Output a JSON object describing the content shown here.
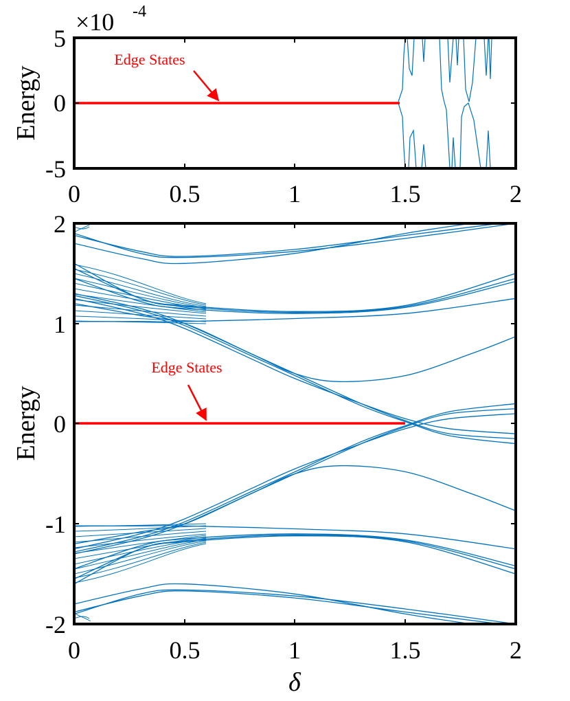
{
  "colors": {
    "band": "#0072BD",
    "edge": "#FF0000",
    "axis": "#000000"
  },
  "chart_data": [
    {
      "type": "line",
      "panel": "top",
      "xlabel": "",
      "ylabel": "Energy",
      "xlim": [
        0,
        2
      ],
      "ylim": [
        -5,
        5
      ],
      "y_scale_label": "×10",
      "y_scale_exponent": "-4",
      "x_ticks": [
        {
          "value": 0,
          "label": "0"
        },
        {
          "value": 0.5,
          "label": "0.5"
        },
        {
          "value": 1,
          "label": "1"
        },
        {
          "value": 1.5,
          "label": "1.5"
        },
        {
          "value": 2,
          "label": "2"
        }
      ],
      "y_ticks": [
        {
          "value": 5,
          "label": "5"
        },
        {
          "value": 0,
          "label": "0"
        },
        {
          "value": -5,
          "label": "-5"
        }
      ],
      "annotation": {
        "text": "Edge States",
        "text_at": [
          0.4,
          3.3
        ],
        "arrow_to": [
          0.66,
          0.1
        ]
      },
      "edge_series": {
        "name": "Edge States",
        "x": [
          0,
          1.47
        ],
        "y": [
          0,
          0
        ]
      }
    },
    {
      "type": "line",
      "panel": "bottom",
      "xlabel": "δ",
      "ylabel": "Energy",
      "xlim": [
        0,
        2
      ],
      "ylim": [
        -2,
        2
      ],
      "x_ticks": [
        {
          "value": 0,
          "label": "0"
        },
        {
          "value": 0.5,
          "label": "0.5"
        },
        {
          "value": 1,
          "label": "1"
        },
        {
          "value": 1.5,
          "label": "1.5"
        },
        {
          "value": 2,
          "label": "2"
        }
      ],
      "y_ticks": [
        {
          "value": 2,
          "label": "2"
        },
        {
          "value": 1,
          "label": "1"
        },
        {
          "value": 0,
          "label": "0"
        },
        {
          "value": -1,
          "label": "-1"
        },
        {
          "value": -2,
          "label": "-2"
        }
      ],
      "annotation": {
        "text": "Edge States",
        "text_at": [
          0.5,
          0.45
        ],
        "arrow_to": [
          0.61,
          0.01
        ]
      },
      "edge_series": {
        "name": "Edge States",
        "x": [
          0,
          1.5
        ],
        "y": [
          0,
          0
        ]
      },
      "band_series": [
        {
          "x": [
            0,
            0.3,
            0.5,
            1.0,
            1.5,
            2.0
          ],
          "y": [
            1.9,
            1.7,
            1.66,
            1.72,
            1.85,
            2.0
          ]
        },
        {
          "x": [
            0,
            0.3,
            0.5,
            1.0,
            1.5,
            2.0
          ],
          "y": [
            1.88,
            1.72,
            1.67,
            1.74,
            1.88,
            2.02
          ]
        },
        {
          "x": [
            0,
            0.3,
            0.5,
            1.0,
            1.5,
            1.8
          ],
          "y": [
            1.8,
            1.65,
            1.6,
            1.7,
            1.9,
            2.0
          ]
        },
        {
          "x": [
            0,
            0.3,
            0.5,
            1.0,
            1.5,
            2.0
          ],
          "y": [
            1.6,
            1.25,
            1.18,
            1.12,
            1.18,
            1.5
          ]
        },
        {
          "x": [
            0,
            0.3,
            0.5,
            1.0,
            1.5,
            2.0
          ],
          "y": [
            1.55,
            1.25,
            1.17,
            1.11,
            1.17,
            1.45
          ]
        },
        {
          "x": [
            0,
            0.3,
            0.5,
            1.0,
            1.5,
            2.0
          ],
          "y": [
            1.45,
            1.22,
            1.15,
            1.1,
            1.16,
            1.42
          ]
        },
        {
          "x": [
            0,
            0.3,
            0.5,
            1.0,
            1.5,
            2.0
          ],
          "y": [
            1.02,
            1.02,
            1.02,
            1.05,
            1.1,
            1.25
          ]
        },
        {
          "x": [
            0,
            0.3,
            0.5,
            0.8,
            1.0,
            1.3,
            1.5,
            1.7,
            2.0
          ],
          "y": [
            1.3,
            1.15,
            1.0,
            0.7,
            0.5,
            0.2,
            0.03,
            -0.1,
            -0.15
          ]
        },
        {
          "x": [
            0,
            0.3,
            0.5,
            0.8,
            1.0,
            1.3,
            1.5,
            1.7,
            2.0
          ],
          "y": [
            1.28,
            1.13,
            0.98,
            0.68,
            0.48,
            0.18,
            0.02,
            -0.12,
            -0.2
          ]
        },
        {
          "x": [
            0,
            0.3,
            0.5,
            0.8,
            1.0,
            1.3,
            1.5,
            1.7,
            2.0
          ],
          "y": [
            1.25,
            1.1,
            0.95,
            0.65,
            0.45,
            0.2,
            0.05,
            -0.05,
            -0.1
          ]
        },
        {
          "x": [
            0,
            0.3,
            0.5,
            0.8,
            1.0,
            1.2,
            1.5,
            1.8,
            2.0
          ],
          "y": [
            1.2,
            1.08,
            1.0,
            0.7,
            0.5,
            0.42,
            0.48,
            0.7,
            0.87
          ]
        },
        {
          "x": [
            0,
            0.3,
            0.5,
            0.8,
            1.0,
            1.3,
            1.5,
            1.7,
            2.0
          ],
          "y": [
            -1.3,
            -1.15,
            -1.0,
            -0.7,
            -0.5,
            -0.2,
            -0.03,
            0.1,
            0.15
          ]
        },
        {
          "x": [
            0,
            0.3,
            0.5,
            0.8,
            1.0,
            1.3,
            1.5,
            1.7,
            2.0
          ],
          "y": [
            -1.28,
            -1.13,
            -0.98,
            -0.68,
            -0.48,
            -0.18,
            -0.02,
            0.12,
            0.2
          ]
        },
        {
          "x": [
            0,
            0.3,
            0.5,
            0.8,
            1.0,
            1.3,
            1.5,
            1.7,
            2.0
          ],
          "y": [
            -1.25,
            -1.1,
            -0.95,
            -0.65,
            -0.45,
            -0.2,
            -0.05,
            0.05,
            0.1
          ]
        },
        {
          "x": [
            0,
            0.3,
            0.5,
            0.8,
            1.0,
            1.2,
            1.5,
            1.8,
            2.0
          ],
          "y": [
            -1.2,
            -1.08,
            -1.0,
            -0.7,
            -0.5,
            -0.42,
            -0.48,
            -0.7,
            -0.87
          ]
        },
        {
          "x": [
            0,
            0.3,
            0.5,
            1.0,
            1.5,
            2.0
          ],
          "y": [
            -1.02,
            -1.02,
            -1.02,
            -1.05,
            -1.1,
            -1.25
          ]
        },
        {
          "x": [
            0,
            0.3,
            0.5,
            1.0,
            1.5,
            2.0
          ],
          "y": [
            -1.45,
            -1.22,
            -1.15,
            -1.1,
            -1.16,
            -1.42
          ]
        },
        {
          "x": [
            0,
            0.3,
            0.5,
            1.0,
            1.5,
            2.0
          ],
          "y": [
            -1.55,
            -1.25,
            -1.17,
            -1.11,
            -1.17,
            -1.45
          ]
        },
        {
          "x": [
            0,
            0.3,
            0.5,
            1.0,
            1.5,
            2.0
          ],
          "y": [
            -1.6,
            -1.25,
            -1.18,
            -1.12,
            -1.18,
            -1.5
          ]
        },
        {
          "x": [
            0,
            0.3,
            0.5,
            1.0,
            1.5,
            1.8
          ],
          "y": [
            -1.8,
            -1.65,
            -1.6,
            -1.7,
            -1.9,
            -2.0
          ]
        },
        {
          "x": [
            0,
            0.3,
            0.5,
            1.0,
            1.5,
            2.0
          ],
          "y": [
            -1.88,
            -1.72,
            -1.67,
            -1.74,
            -1.88,
            -2.02
          ]
        },
        {
          "x": [
            0,
            0.3,
            0.5,
            1.0,
            1.5,
            2.0
          ],
          "y": [
            -1.9,
            -1.7,
            -1.66,
            -1.72,
            -1.85,
            -2.0
          ]
        }
      ]
    }
  ]
}
